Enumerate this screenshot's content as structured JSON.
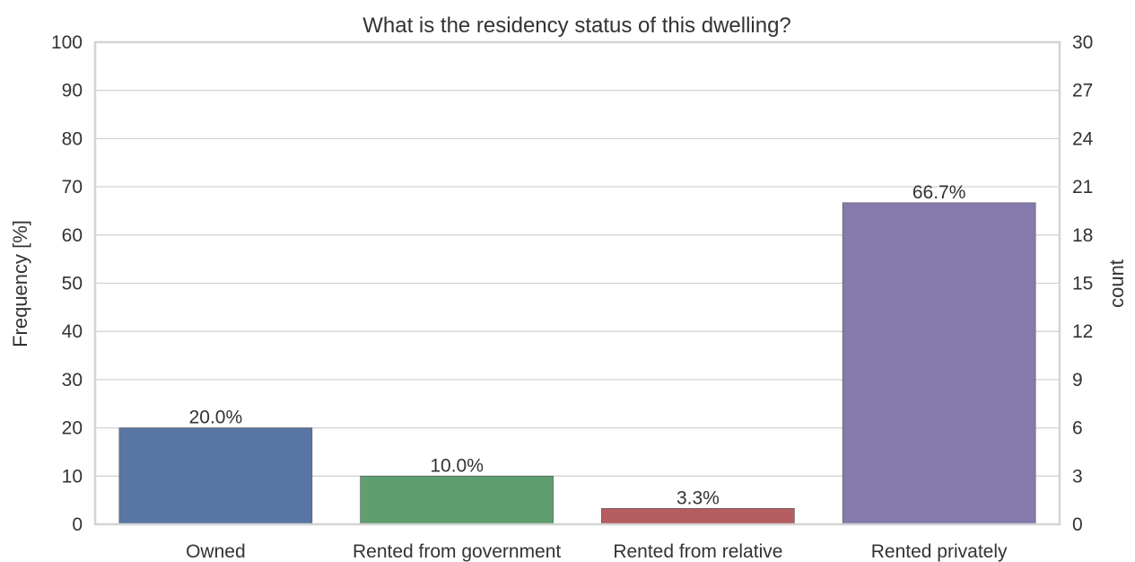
{
  "chart_data": {
    "type": "bar",
    "title": "What is the residency status of this dwelling?",
    "categories": [
      "Owned",
      "Rented from government",
      "Rented from relative",
      "Rented privately"
    ],
    "values": [
      20.0,
      10.0,
      3.3,
      66.7
    ],
    "value_labels": [
      "20.0%",
      "10.0%",
      "3.3%",
      "66.7%"
    ],
    "colors": [
      "#5875a4",
      "#5f9e6e",
      "#b55d60",
      "#857aab"
    ],
    "ylabel": "Frequency [%]",
    "ylim": [
      0,
      100
    ],
    "yticks": [
      "0",
      "10",
      "20",
      "30",
      "40",
      "50",
      "60",
      "70",
      "80",
      "90",
      "100"
    ],
    "y2label": "count",
    "y2lim": [
      0,
      30
    ],
    "y2ticks": [
      "0",
      "3",
      "6",
      "9",
      "12",
      "15",
      "18",
      "21",
      "24",
      "27",
      "30"
    ],
    "grid": true,
    "legend": "none"
  }
}
